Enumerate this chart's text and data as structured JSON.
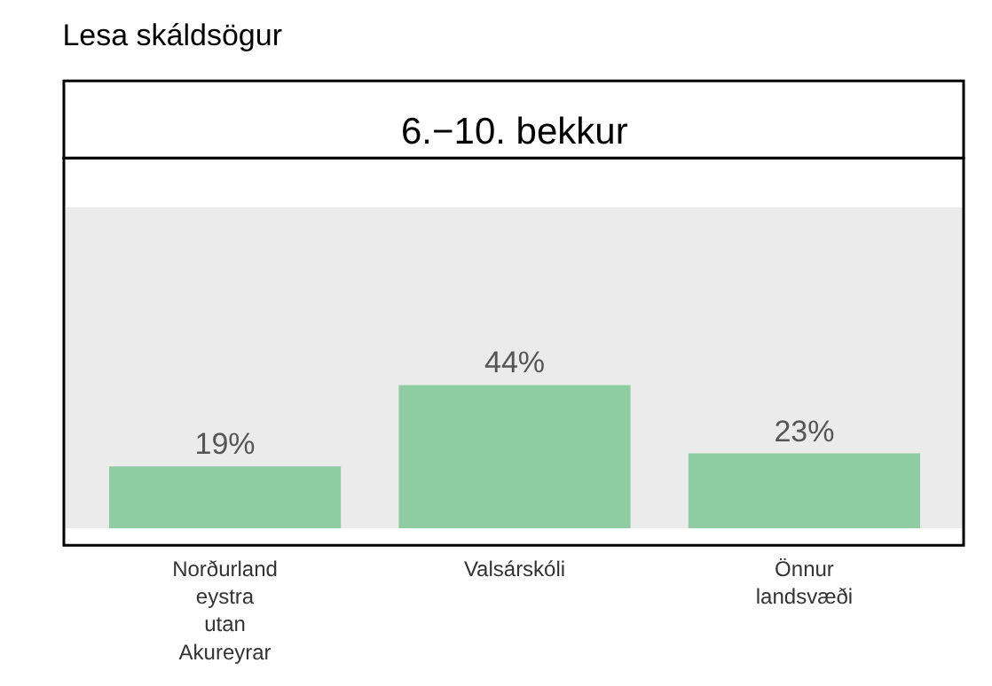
{
  "chart_data": {
    "type": "bar",
    "title": "Lesa skáldsögur",
    "subtitle": "6.−10. bekkur",
    "categories": [
      "Norðurland eystra utan Akureyrar",
      "Valsárskóli",
      "Önnur landsvæði"
    ],
    "values": [
      19,
      44,
      23
    ],
    "value_labels": [
      "19%",
      "44%",
      "23%"
    ],
    "color": "#8fcca1",
    "tick_labels": "x",
    "grid": false,
    "legend": false
  }
}
